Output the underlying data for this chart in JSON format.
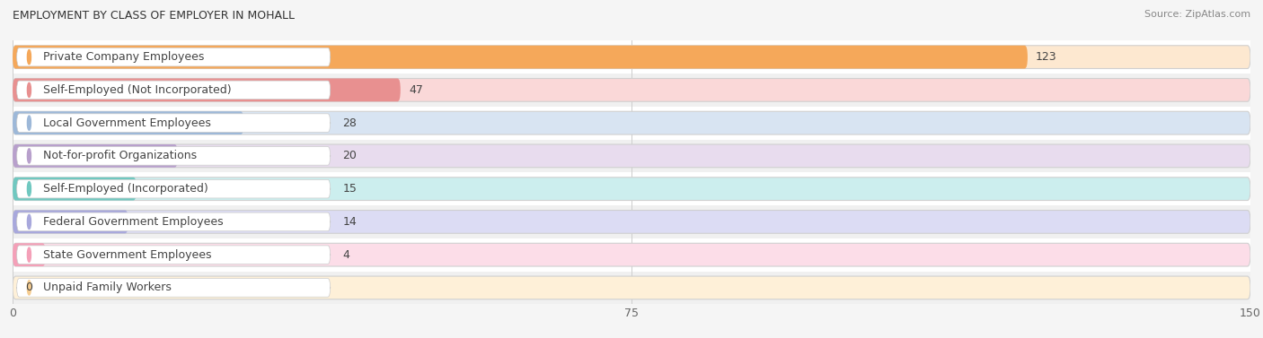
{
  "title": "Employment by Class of Employer in Mohall",
  "source": "Source: ZipAtlas.com",
  "categories": [
    "Private Company Employees",
    "Self-Employed (Not Incorporated)",
    "Local Government Employees",
    "Not-for-profit Organizations",
    "Self-Employed (Incorporated)",
    "Federal Government Employees",
    "State Government Employees",
    "Unpaid Family Workers"
  ],
  "values": [
    123,
    47,
    28,
    20,
    15,
    14,
    4,
    0
  ],
  "bar_colors": [
    "#F5A85A",
    "#E89090",
    "#9DB8D8",
    "#B8A0CC",
    "#70C8C0",
    "#A8A8DC",
    "#F4A0B8",
    "#F5CC90"
  ],
  "bar_bg_colors": [
    "#FDE8D0",
    "#FAD8D8",
    "#D8E4F2",
    "#E8DCEE",
    "#CCEEEE",
    "#DCDCF4",
    "#FCDDE8",
    "#FEF0D8"
  ],
  "row_bg_color": "#f0f0f0",
  "xlim": [
    0,
    150
  ],
  "xticks": [
    0,
    75,
    150
  ],
  "figsize": [
    14.06,
    3.77
  ],
  "dpi": 100,
  "title_fontsize": 9,
  "label_fontsize": 9,
  "value_fontsize": 9,
  "source_fontsize": 8,
  "background_color": "#f5f5f5"
}
